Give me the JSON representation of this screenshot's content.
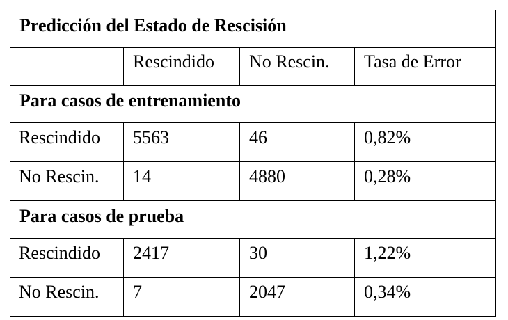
{
  "table": {
    "title": "Predicción del Estado de Rescisión",
    "headers": [
      "",
      "Rescindido",
      "No Rescin.",
      "Tasa de Error"
    ],
    "sections": [
      {
        "label": "Para casos de entrenamiento",
        "rows": [
          {
            "label": "Rescindido",
            "rescindido": "5563",
            "no_rescin": "46",
            "tasa": "0,82%"
          },
          {
            "label": "No Rescin.",
            "rescindido": "14",
            "no_rescin": "4880",
            "tasa": "0,28%"
          }
        ]
      },
      {
        "label": "Para casos de prueba",
        "rows": [
          {
            "label": "Rescindido",
            "rescindido": "2417",
            "no_rescin": "30",
            "tasa": "1,22%"
          },
          {
            "label": "No Rescin.",
            "rescindido": "7",
            "no_rescin": "2047",
            "tasa": "0,34%"
          }
        ]
      }
    ]
  }
}
